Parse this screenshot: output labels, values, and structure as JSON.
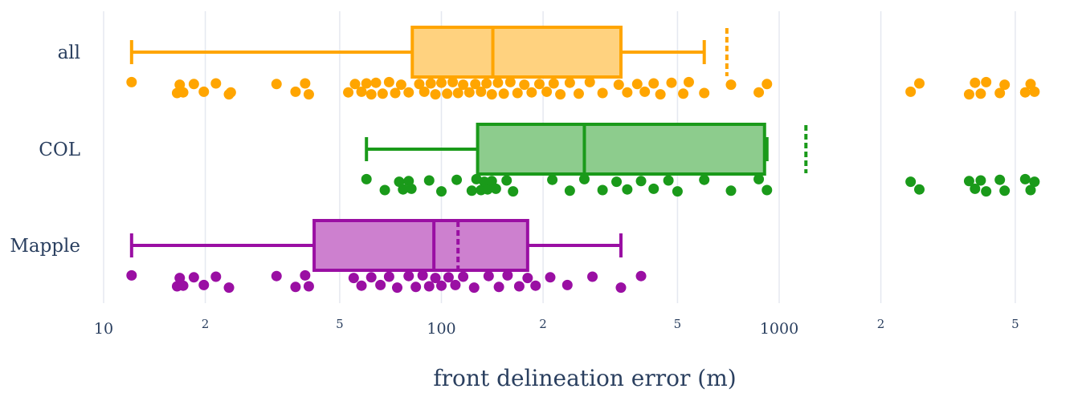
{
  "chart_data": {
    "type": "box",
    "orientation": "horizontal",
    "title": "",
    "xlabel": "front delineation error (m)",
    "ylabel": "",
    "xaxis_type": "log",
    "xlim": [
      10,
      6000
    ],
    "grid": true,
    "x_ticks": [
      {
        "value": 10,
        "label": "10",
        "major": true
      },
      {
        "value": 20,
        "label": "2",
        "major": false
      },
      {
        "value": 50,
        "label": "5",
        "major": false
      },
      {
        "value": 100,
        "label": "100",
        "major": true
      },
      {
        "value": 200,
        "label": "2",
        "major": false
      },
      {
        "value": 500,
        "label": "5",
        "major": false
      },
      {
        "value": 1000,
        "label": "1000",
        "major": true
      },
      {
        "value": 2000,
        "label": "2",
        "major": false
      },
      {
        "value": 5000,
        "label": "5",
        "major": false
      }
    ],
    "categories": [
      "all",
      "COL",
      "Mapple"
    ],
    "series": [
      {
        "name": "all",
        "color": "#ffa500",
        "fill": "#ffd27f",
        "whisker_low": 12.1,
        "q1": 82,
        "median": 142,
        "q3": 340,
        "whisker_high": 600,
        "mean": 700,
        "points": [
          {
            "x": 12.1,
            "j": 0
          },
          {
            "x": 16.5,
            "j": 1
          },
          {
            "x": 16.8,
            "j": 0
          },
          {
            "x": 17.2,
            "j": 1
          },
          {
            "x": 18.5,
            "j": 0
          },
          {
            "x": 19.8,
            "j": 1
          },
          {
            "x": 21.5,
            "j": 0
          },
          {
            "x": 23.5,
            "j": 1
          },
          {
            "x": 23.8,
            "j": 1
          },
          {
            "x": 32.5,
            "j": 0
          },
          {
            "x": 37,
            "j": 1
          },
          {
            "x": 39.5,
            "j": 0
          },
          {
            "x": 40.5,
            "j": 1
          },
          {
            "x": 53,
            "j": 1
          },
          {
            "x": 55.5,
            "j": 0
          },
          {
            "x": 58,
            "j": 1
          },
          {
            "x": 60,
            "j": 0
          },
          {
            "x": 62,
            "j": 1
          },
          {
            "x": 64,
            "j": 0
          },
          {
            "x": 67,
            "j": 1
          },
          {
            "x": 70,
            "j": 0
          },
          {
            "x": 73,
            "j": 1
          },
          {
            "x": 76,
            "j": 0
          },
          {
            "x": 80,
            "j": 1
          },
          {
            "x": 86,
            "j": 0
          },
          {
            "x": 89,
            "j": 1
          },
          {
            "x": 93,
            "j": 0
          },
          {
            "x": 96,
            "j": 1
          },
          {
            "x": 100,
            "j": 0
          },
          {
            "x": 104,
            "j": 1
          },
          {
            "x": 108,
            "j": 0
          },
          {
            "x": 112,
            "j": 1
          },
          {
            "x": 116,
            "j": 0
          },
          {
            "x": 121,
            "j": 1
          },
          {
            "x": 126,
            "j": 0
          },
          {
            "x": 131,
            "j": 1
          },
          {
            "x": 136,
            "j": 0
          },
          {
            "x": 141,
            "j": 1
          },
          {
            "x": 147,
            "j": 0
          },
          {
            "x": 153,
            "j": 1
          },
          {
            "x": 160,
            "j": 0
          },
          {
            "x": 168,
            "j": 1
          },
          {
            "x": 176,
            "j": 0
          },
          {
            "x": 185,
            "j": 1
          },
          {
            "x": 195,
            "j": 0
          },
          {
            "x": 205,
            "j": 1
          },
          {
            "x": 215,
            "j": 0
          },
          {
            "x": 225,
            "j": 1
          },
          {
            "x": 240,
            "j": 0
          },
          {
            "x": 255,
            "j": 1
          },
          {
            "x": 275,
            "j": 0
          },
          {
            "x": 300,
            "j": 1
          },
          {
            "x": 335,
            "j": 0
          },
          {
            "x": 355,
            "j": 1
          },
          {
            "x": 380,
            "j": 0
          },
          {
            "x": 400,
            "j": 1
          },
          {
            "x": 425,
            "j": 0
          },
          {
            "x": 445,
            "j": 1
          },
          {
            "x": 480,
            "j": 0
          },
          {
            "x": 520,
            "j": 1
          },
          {
            "x": 540,
            "j": 0
          },
          {
            "x": 600,
            "j": 1
          },
          {
            "x": 720,
            "j": 0
          },
          {
            "x": 870,
            "j": 1
          },
          {
            "x": 920,
            "j": 0
          },
          {
            "x": 2450,
            "j": 1
          },
          {
            "x": 2600,
            "j": 0
          },
          {
            "x": 3650,
            "j": 1
          },
          {
            "x": 3800,
            "j": 0
          },
          {
            "x": 3950,
            "j": 1
          },
          {
            "x": 4100,
            "j": 0
          },
          {
            "x": 4500,
            "j": 1
          },
          {
            "x": 4650,
            "j": 0
          },
          {
            "x": 5350,
            "j": 1
          },
          {
            "x": 5550,
            "j": 0
          },
          {
            "x": 5700,
            "j": 1
          }
        ]
      },
      {
        "name": "COL",
        "color": "#1a9a1a",
        "fill": "#8dcc8d",
        "whisker_low": 60,
        "q1": 128,
        "median": 265,
        "q3": 905,
        "whisker_high": 920,
        "mean": 1200,
        "points": [
          {
            "x": 60,
            "j": 0
          },
          {
            "x": 68,
            "j": 1
          },
          {
            "x": 75,
            "j": 0
          },
          {
            "x": 77,
            "j": 1
          },
          {
            "x": 80,
            "j": 0
          },
          {
            "x": 81.5,
            "j": 1
          },
          {
            "x": 92,
            "j": 0
          },
          {
            "x": 100,
            "j": 1
          },
          {
            "x": 111,
            "j": 0
          },
          {
            "x": 123,
            "j": 1
          },
          {
            "x": 127,
            "j": 0
          },
          {
            "x": 131,
            "j": 1
          },
          {
            "x": 134,
            "j": 0
          },
          {
            "x": 137,
            "j": 1
          },
          {
            "x": 141,
            "j": 0
          },
          {
            "x": 145,
            "j": 1
          },
          {
            "x": 156,
            "j": 0
          },
          {
            "x": 163,
            "j": 1
          },
          {
            "x": 213,
            "j": 0
          },
          {
            "x": 240,
            "j": 1
          },
          {
            "x": 265,
            "j": 0
          },
          {
            "x": 300,
            "j": 1
          },
          {
            "x": 330,
            "j": 0
          },
          {
            "x": 355,
            "j": 1
          },
          {
            "x": 390,
            "j": 0
          },
          {
            "x": 425,
            "j": 1
          },
          {
            "x": 470,
            "j": 0
          },
          {
            "x": 500,
            "j": 1
          },
          {
            "x": 600,
            "j": 0
          },
          {
            "x": 720,
            "j": 1
          },
          {
            "x": 870,
            "j": 0
          },
          {
            "x": 920,
            "j": 1
          },
          {
            "x": 2450,
            "j": 0
          },
          {
            "x": 2600,
            "j": 1
          },
          {
            "x": 3650,
            "j": 0
          },
          {
            "x": 3800,
            "j": 1
          },
          {
            "x": 3950,
            "j": 0
          },
          {
            "x": 4100,
            "j": 1
          },
          {
            "x": 4500,
            "j": 0
          },
          {
            "x": 4650,
            "j": 1
          },
          {
            "x": 5350,
            "j": 0
          },
          {
            "x": 5550,
            "j": 1
          },
          {
            "x": 5700,
            "j": 0
          }
        ]
      },
      {
        "name": "Mapple",
        "color": "#9a0fa3",
        "fill": "#cd80cf",
        "whisker_low": 12.1,
        "q1": 42,
        "median": 95,
        "q3": 180,
        "whisker_high": 340,
        "mean": 112,
        "points": [
          {
            "x": 12.1,
            "j": 0
          },
          {
            "x": 16.5,
            "j": 1
          },
          {
            "x": 16.8,
            "j": 0
          },
          {
            "x": 17.2,
            "j": 1
          },
          {
            "x": 18.5,
            "j": 0
          },
          {
            "x": 19.8,
            "j": 1
          },
          {
            "x": 21.5,
            "j": 0
          },
          {
            "x": 23.5,
            "j": 1
          },
          {
            "x": 32.5,
            "j": 0
          },
          {
            "x": 37,
            "j": 1
          },
          {
            "x": 39.5,
            "j": 0
          },
          {
            "x": 40.5,
            "j": 1
          },
          {
            "x": 55,
            "j": 0
          },
          {
            "x": 58,
            "j": 1
          },
          {
            "x": 62,
            "j": 0
          },
          {
            "x": 66,
            "j": 1
          },
          {
            "x": 70,
            "j": 0
          },
          {
            "x": 74,
            "j": 1
          },
          {
            "x": 80,
            "j": 0
          },
          {
            "x": 84,
            "j": 1
          },
          {
            "x": 88,
            "j": 0
          },
          {
            "x": 92,
            "j": 1
          },
          {
            "x": 96,
            "j": 0
          },
          {
            "x": 100,
            "j": 1
          },
          {
            "x": 105,
            "j": 0
          },
          {
            "x": 110,
            "j": 1
          },
          {
            "x": 116,
            "j": 0
          },
          {
            "x": 125,
            "j": 1
          },
          {
            "x": 138,
            "j": 0
          },
          {
            "x": 148,
            "j": 1
          },
          {
            "x": 157,
            "j": 0
          },
          {
            "x": 170,
            "j": 1
          },
          {
            "x": 180,
            "j": 0
          },
          {
            "x": 190,
            "j": 1
          },
          {
            "x": 210,
            "j": 0
          },
          {
            "x": 236,
            "j": 1
          },
          {
            "x": 280,
            "j": 0
          },
          {
            "x": 340,
            "j": 1
          },
          {
            "x": 390,
            "j": 0
          }
        ]
      }
    ]
  }
}
